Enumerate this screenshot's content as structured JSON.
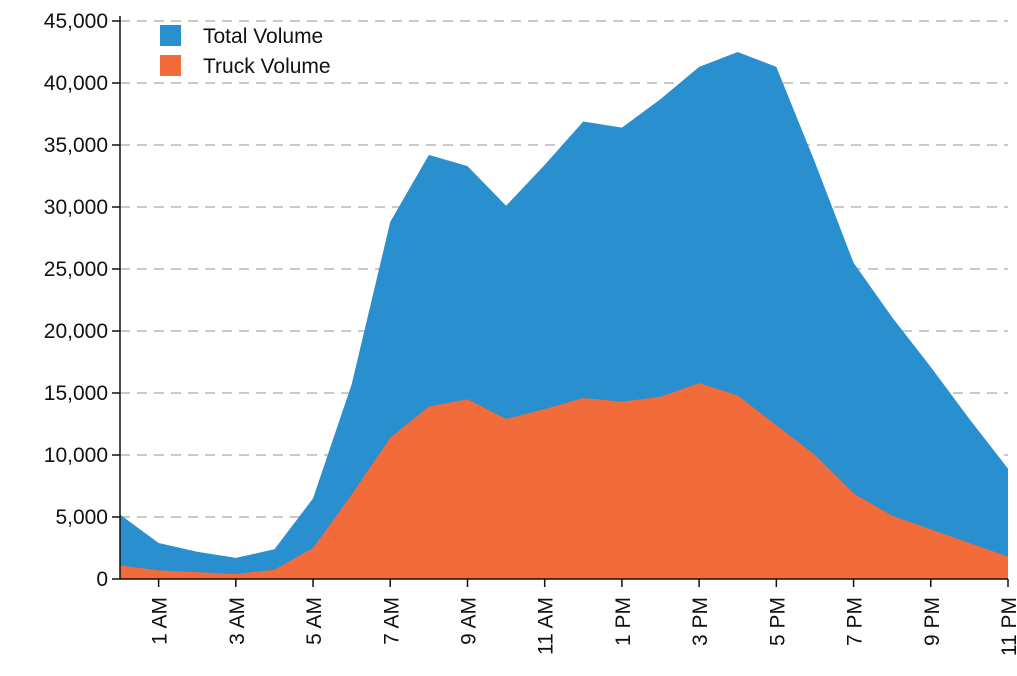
{
  "chart_data": {
    "type": "area",
    "categories": [
      null,
      "1 AM",
      null,
      "3 AM",
      null,
      "5 AM",
      null,
      "7 AM",
      null,
      "9 AM",
      null,
      "11 AM",
      null,
      "1 PM",
      null,
      "3 PM",
      null,
      "5 PM",
      null,
      "7 PM",
      null,
      "9 PM",
      null,
      "11 PM"
    ],
    "series": [
      {
        "name": "Total Volume",
        "color": "#2a8fcf",
        "values": [
          5200,
          2900,
          2200,
          1700,
          2400,
          6500,
          15700,
          28800,
          34200,
          33300,
          30100,
          33400,
          36900,
          36400,
          38700,
          41300,
          42500,
          41300,
          33600,
          25500,
          21100,
          17100,
          12900,
          8900
        ]
      },
      {
        "name": "Truck Volume",
        "color": "#f26b3a",
        "values": [
          1100,
          700,
          550,
          400,
          750,
          2500,
          6800,
          11400,
          13900,
          14500,
          12900,
          13700,
          14600,
          14300,
          14700,
          15800,
          14800,
          12400,
          10000,
          6900,
          5100,
          4000,
          2900,
          1800
        ]
      }
    ],
    "ylim": [
      0,
      45000
    ],
    "yticks": [
      0,
      {
        "value": 5000,
        "label": "5,000"
      },
      {
        "value": 10000,
        "label": "10,000"
      },
      {
        "value": 15000,
        "label": "15,000"
      },
      {
        "value": 20000,
        "label": "20,000"
      },
      {
        "value": 25000,
        "label": "25,000"
      },
      {
        "value": 30000,
        "label": "30,000"
      },
      {
        "value": 35000,
        "label": "35,000"
      },
      {
        "value": 40000,
        "label": "40,000"
      },
      {
        "value": 45000,
        "label": "45,000"
      }
    ],
    "grid": true,
    "legend": "top-left"
  }
}
